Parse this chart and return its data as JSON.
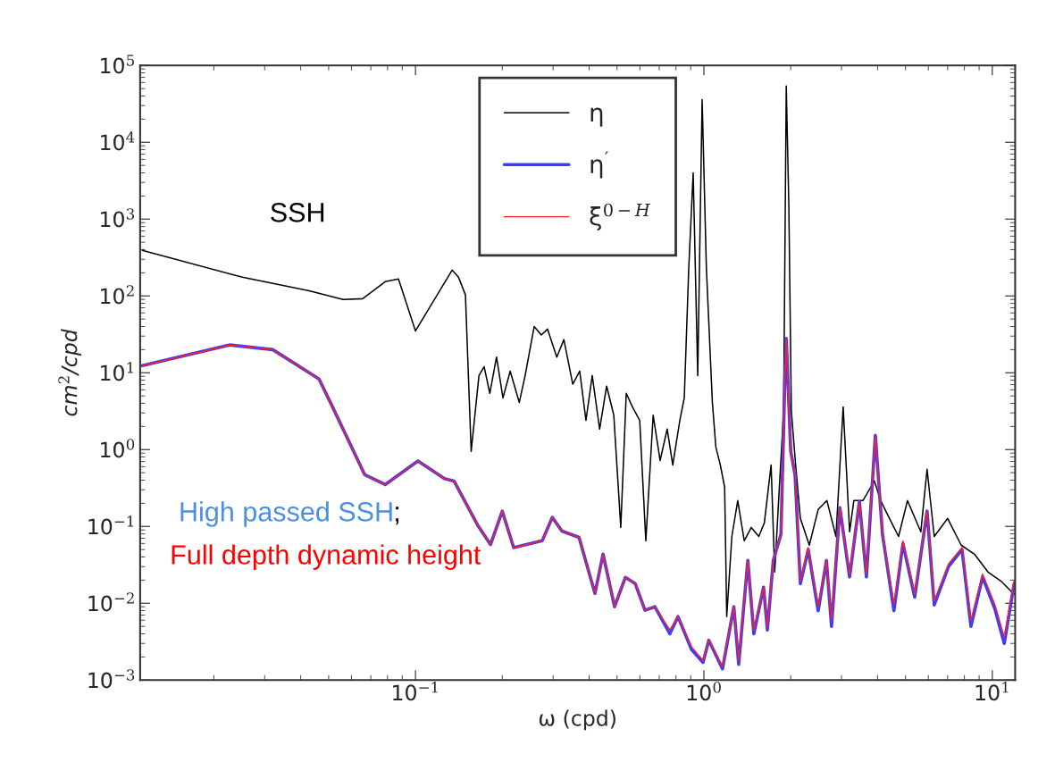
{
  "chart_data": {
    "type": "line",
    "xlabel": "ω (cpd)",
    "ylabel": "cm$^{2}$/cpd",
    "log": "xy",
    "grid": false,
    "legend": "top",
    "marker": "none",
    "line_style": "solid",
    "xlim": [
      0.0111,
      12.0
    ],
    "ylim": [
      0.001,
      100000
    ],
    "xticks": [
      {
        "value": 0.1,
        "label": "10$^{−1}$"
      },
      {
        "value": 1,
        "label": "10$^{0}$"
      },
      {
        "value": 10,
        "label": "10$^{1}$"
      }
    ],
    "yticks": [
      {
        "value": 0.001,
        "label": "10$^{−3}$"
      },
      {
        "value": 0.01,
        "label": "10$^{−2}$"
      },
      {
        "value": 0.1,
        "label": "10$^{−1}$"
      },
      {
        "value": 1,
        "label": "10$^{0}$"
      },
      {
        "value": 10,
        "label": "10$^{1}$"
      },
      {
        "value": 100,
        "label": "10$^{2}$"
      },
      {
        "value": 1000,
        "label": "10$^{3}$"
      },
      {
        "value": 10000,
        "label": "10$^{4}$"
      },
      {
        "value": 100000,
        "label": "10$^{5}$"
      }
    ],
    "annotations": [
      "SSH",
      "High passed SSH",
      ";",
      "Full depth dynamic height"
    ],
    "series": [
      {
        "name": "η",
        "color": "#000000",
        "x": [
          0.0113,
          0.0251,
          0.0428,
          0.0561,
          0.0656,
          0.0785,
          0.0873,
          0.1,
          0.134,
          0.141,
          0.149,
          0.156,
          0.166,
          0.173,
          0.181,
          0.191,
          0.201,
          0.213,
          0.229,
          0.24,
          0.258,
          0.273,
          0.287,
          0.309,
          0.327,
          0.351,
          0.371,
          0.39,
          0.41,
          0.435,
          0.46,
          0.487,
          0.515,
          0.538,
          0.565,
          0.599,
          0.629,
          0.667,
          0.705,
          0.746,
          0.78,
          0.825,
          0.855,
          0.886,
          0.918,
          0.952,
          0.986,
          1.02,
          1.07,
          1.1,
          1.14,
          1.18,
          1.2,
          1.25,
          1.31,
          1.38,
          1.46,
          1.55,
          1.62,
          1.71,
          1.76,
          1.83,
          1.89,
          1.93,
          1.97,
          2.01,
          2.08,
          2.16,
          2.32,
          2.49,
          2.67,
          2.87,
          3.04,
          3.2,
          3.31,
          3.56,
          3.9,
          4.1,
          4.4,
          4.73,
          5.08,
          5.65,
          5.94,
          6.29,
          7.0,
          7.8,
          8.67,
          9.66,
          10.7,
          11.9
        ],
        "values": [
          392,
          175,
          117,
          90,
          92,
          153,
          166,
          35,
          217,
          175,
          103,
          0.95,
          9.2,
          12,
          5.4,
          16,
          4.7,
          10.5,
          4.1,
          9.2,
          40,
          31,
          37,
          16,
          27,
          7.1,
          10.5,
          2.4,
          9.2,
          1.85,
          6.7,
          2.8,
          0.097,
          5.4,
          3.6,
          2.4,
          0.065,
          2.8,
          0.72,
          1.85,
          0.63,
          2.4,
          4.7,
          229,
          4000,
          9.2,
          36000,
          229,
          4.1,
          1.08,
          0.63,
          0.325,
          0.0067,
          0.074,
          0.217,
          0.065,
          0.097,
          0.074,
          0.111,
          0.63,
          0.0255,
          0.37,
          3.16,
          54000,
          1500,
          3.16,
          0.63,
          0.127,
          0.057,
          0.166,
          0.217,
          0.074,
          3.6,
          0.085,
          0.217,
          0.217,
          0.39,
          0.217,
          0.127,
          0.074,
          0.217,
          0.085,
          0.555,
          0.074,
          0.127,
          0.057,
          0.0436,
          0.0255,
          0.0195,
          0.0131
        ]
      },
      {
        "name": "η$^{′}$",
        "color": "#3c3cff",
        "x": [
          0.0113,
          0.0227,
          0.032,
          0.0438,
          0.0463,
          0.0512,
          0.0667,
          0.0785,
          0.102,
          0.126,
          0.136,
          0.164,
          0.182,
          0.2,
          0.219,
          0.275,
          0.298,
          0.322,
          0.369,
          0.419,
          0.447,
          0.49,
          0.534,
          0.578,
          0.625,
          0.676,
          0.762,
          0.813,
          0.906,
          0.993,
          1.04,
          1.16,
          1.27,
          1.32,
          1.42,
          1.49,
          1.61,
          1.66,
          1.74,
          1.85,
          1.91,
          1.93,
          2.0,
          2.07,
          2.16,
          2.3,
          2.49,
          2.66,
          2.77,
          2.96,
          3.2,
          3.46,
          3.66,
          3.93,
          4.16,
          4.56,
          4.9,
          5.38,
          5.94,
          6.29,
          7.05,
          7.85,
          8.43,
          9.25,
          10.2,
          11.0,
          11.9
        ],
        "values": [
          12.4,
          23,
          20,
          9.5,
          8.3,
          3.8,
          0.47,
          0.35,
          0.71,
          0.42,
          0.39,
          0.105,
          0.058,
          0.158,
          0.053,
          0.065,
          0.131,
          0.087,
          0.072,
          0.0134,
          0.0436,
          0.009,
          0.0217,
          0.018,
          0.0081,
          0.009,
          0.004,
          0.0067,
          0.0025,
          0.0017,
          0.0033,
          0.0014,
          0.009,
          0.0016,
          0.036,
          0.004,
          0.0162,
          0.0045,
          0.036,
          0.079,
          9.2,
          28,
          0.95,
          0.47,
          0.018,
          0.05,
          0.008,
          0.036,
          0.005,
          0.175,
          0.022,
          0.21,
          0.022,
          1.53,
          0.079,
          0.008,
          0.06,
          0.012,
          0.158,
          0.0095,
          0.03,
          0.05,
          0.005,
          0.022,
          0.0085,
          0.003,
          0.018
        ]
      },
      {
        "name": "ξ$^{0−H}$",
        "color": "#ff2020",
        "x": [
          0.0113,
          0.0227,
          0.032,
          0.0438,
          0.0463,
          0.0512,
          0.0667,
          0.0785,
          0.102,
          0.126,
          0.136,
          0.164,
          0.182,
          0.2,
          0.219,
          0.275,
          0.298,
          0.322,
          0.369,
          0.419,
          0.447,
          0.49,
          0.534,
          0.578,
          0.625,
          0.676,
          0.762,
          0.813,
          0.906,
          0.993,
          1.04,
          1.16,
          1.27,
          1.32,
          1.42,
          1.49,
          1.61,
          1.66,
          1.74,
          1.85,
          1.91,
          1.93,
          2.0,
          2.07,
          2.16,
          2.3,
          2.49,
          2.66,
          2.77,
          2.96,
          3.2,
          3.46,
          3.66,
          3.93,
          4.16,
          4.56,
          4.9,
          5.38,
          5.94,
          6.29,
          7.05,
          7.85,
          8.43,
          9.25,
          10.2,
          11.0,
          11.9
        ],
        "values": [
          12.4,
          23,
          20,
          9.5,
          8.3,
          3.8,
          0.47,
          0.35,
          0.71,
          0.42,
          0.39,
          0.105,
          0.058,
          0.158,
          0.053,
          0.065,
          0.131,
          0.087,
          0.072,
          0.0134,
          0.0436,
          0.009,
          0.0217,
          0.018,
          0.0081,
          0.009,
          0.0045,
          0.0067,
          0.0027,
          0.0018,
          0.0033,
          0.0015,
          0.009,
          0.0018,
          0.036,
          0.0045,
          0.0162,
          0.005,
          0.036,
          0.079,
          9.2,
          28,
          0.95,
          0.47,
          0.0195,
          0.053,
          0.009,
          0.036,
          0.006,
          0.175,
          0.024,
          0.21,
          0.024,
          1.53,
          0.079,
          0.0097,
          0.065,
          0.0134,
          0.158,
          0.0108,
          0.0325,
          0.053,
          0.006,
          0.024,
          0.0097,
          0.0036,
          0.0195
        ]
      }
    ]
  }
}
